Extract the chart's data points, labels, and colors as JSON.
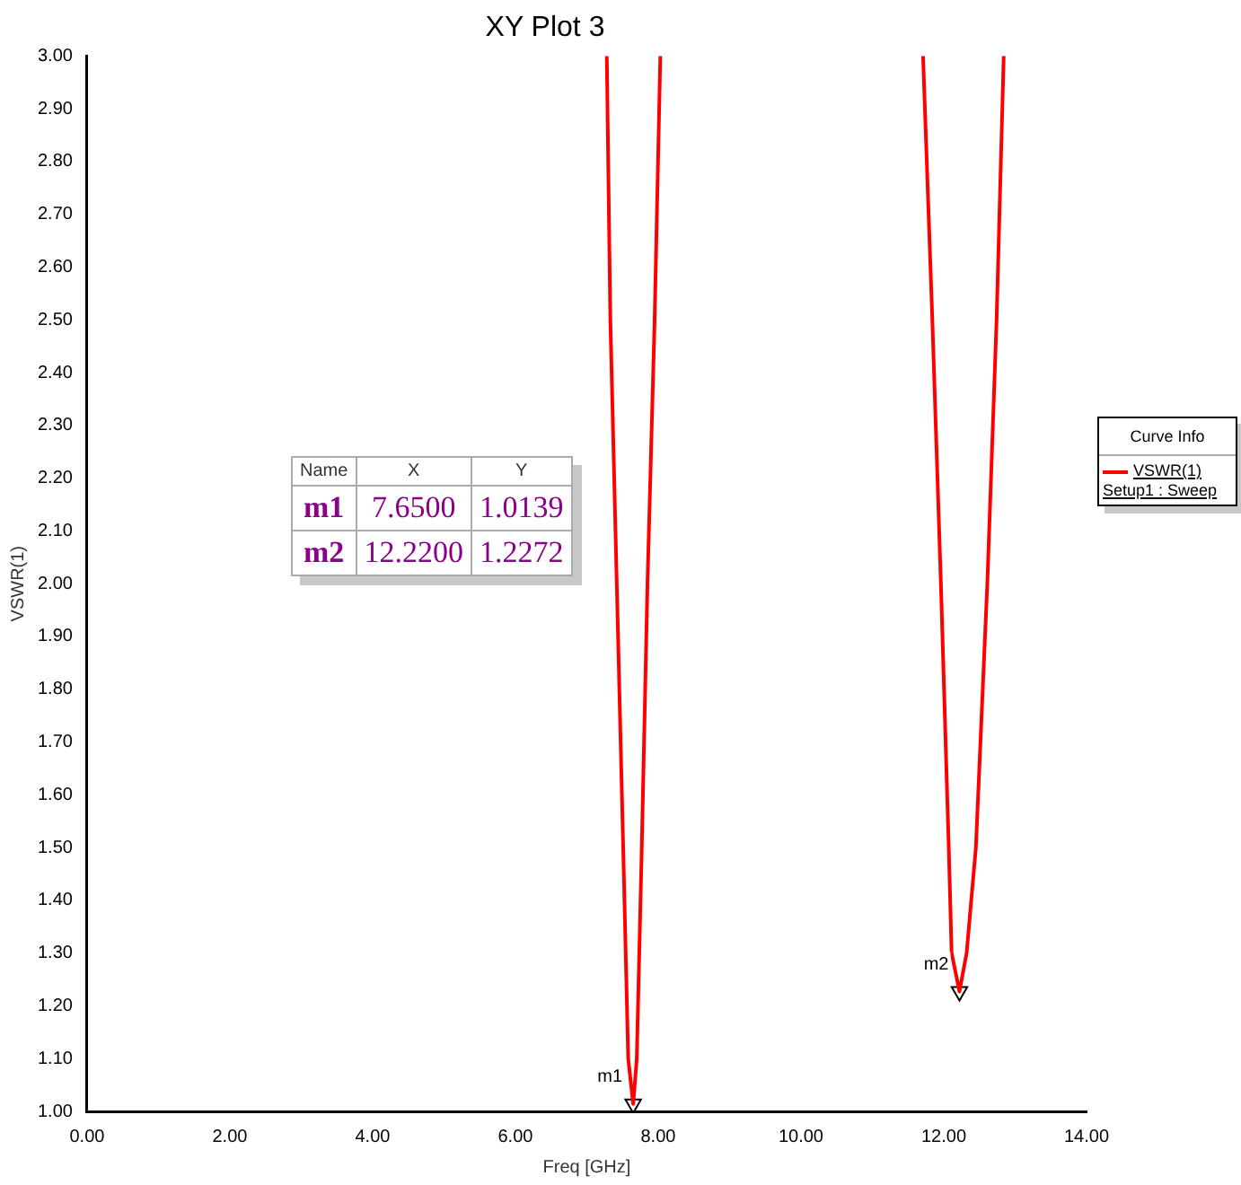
{
  "chart_data": {
    "type": "line",
    "title": "XY Plot 3",
    "xlabel": "Freq [GHz]",
    "ylabel": "VSWR(1)",
    "legend_title": "Curve Info",
    "x": [
      7.28,
      7.33,
      7.42,
      7.51,
      7.58,
      7.65,
      7.7,
      7.77,
      7.85,
      7.95,
      8.03,
      10.0,
      11.71,
      11.84,
      11.96,
      12.07,
      12.11,
      12.22,
      12.32,
      12.45,
      12.61,
      12.74,
      12.84
    ],
    "series": [
      {
        "name": "VSWR(1)",
        "color": "#ff0000",
        "values": [
          3.0,
          2.5,
          2.0,
          1.5,
          1.1,
          1.0139,
          1.1,
          1.5,
          2.0,
          2.5,
          3.0,
          null,
          3.0,
          2.5,
          2.0,
          1.5,
          1.3,
          1.2272,
          1.3,
          1.5,
          2.0,
          2.5,
          3.0
        ]
      },
      {
        "type": "scatter",
        "marker": "triangle",
        "color": "#000000",
        "x": [
          7.65,
          12.22
        ],
        "values": [
          1.0139,
          1.2272
        ]
      }
    ],
    "xlim": [
      0,
      14
    ],
    "xticks": [
      {
        "value": 0,
        "label": "0.00"
      },
      {
        "value": 2,
        "label": "2.00"
      },
      {
        "value": 4,
        "label": "4.00"
      },
      {
        "value": 6,
        "label": "6.00"
      },
      {
        "value": 8,
        "label": "8.00"
      },
      {
        "value": 10,
        "label": "10.00"
      },
      {
        "value": 12,
        "label": "12.00"
      },
      {
        "value": 14,
        "label": "14.00"
      }
    ],
    "ylim": [
      1,
      3
    ],
    "yticks": [
      {
        "value": 1,
        "label": "1.00"
      },
      {
        "value": 1.1,
        "label": "1.10"
      },
      {
        "value": 1.2,
        "label": "1.20"
      },
      {
        "value": 1.3,
        "label": "1.30"
      },
      {
        "value": 1.4,
        "label": "1.40"
      },
      {
        "value": 1.5,
        "label": "1.50"
      },
      {
        "value": 1.6,
        "label": "1.60"
      },
      {
        "value": 1.7,
        "label": "1.70"
      },
      {
        "value": 1.8,
        "label": "1.80"
      },
      {
        "value": 1.9,
        "label": "1.90"
      },
      {
        "value": 2,
        "label": "2.00"
      },
      {
        "value": 2.1,
        "label": "2.10"
      },
      {
        "value": 2.2,
        "label": "2.20"
      },
      {
        "value": 2.3,
        "label": "2.30"
      },
      {
        "value": 2.4,
        "label": "2.40"
      },
      {
        "value": 2.5,
        "label": "2.50"
      },
      {
        "value": 2.6,
        "label": "2.60"
      },
      {
        "value": 2.7,
        "label": "2.70"
      },
      {
        "value": 2.8,
        "label": "2.80"
      },
      {
        "value": 2.9,
        "label": "2.90"
      },
      {
        "value": 3,
        "label": "3.00"
      }
    ],
    "grid": false,
    "legend": "right",
    "marker": "none",
    "line_style": "solid",
    "annotations": [
      "Name",
      "X",
      "Y",
      "m1",
      "7.6500",
      "1.0139",
      "m2",
      "12.2200",
      "1.2272",
      "Setup1 : Sweep",
      {
        "text": "m1",
        "x": 7.65,
        "y": 1.0139
      },
      {
        "text": "m2",
        "x": 12.22,
        "y": 1.2272
      }
    ]
  }
}
